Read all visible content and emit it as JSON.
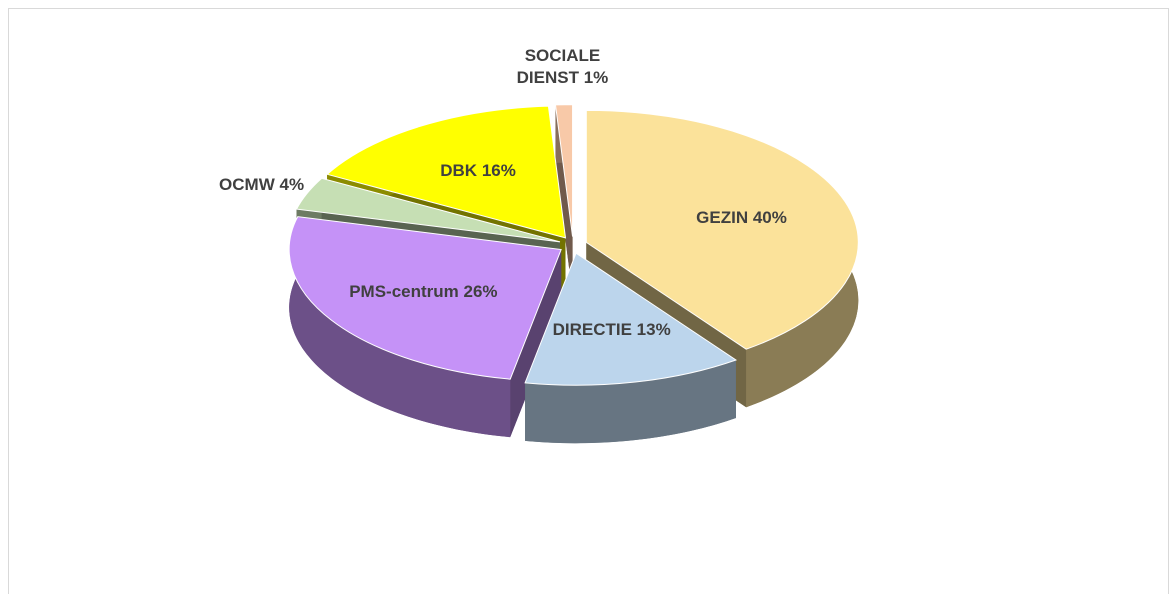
{
  "chart_data": {
    "type": "pie3d",
    "categories": [
      "GEZIN",
      "DIRECTIE",
      "PMS-centrum",
      "OCMW",
      "DBK",
      "SOCIALE DIENST"
    ],
    "values": [
      40,
      13,
      26,
      4,
      16,
      1
    ],
    "value_labels": [
      "40%",
      "13%",
      "26%",
      "4%",
      "16%",
      "1%"
    ],
    "colors": [
      "#fbe29a",
      "#bcd5ec",
      "#c592f7",
      "#c6dfb4",
      "#ffff00",
      "#f8c9a8"
    ]
  }
}
